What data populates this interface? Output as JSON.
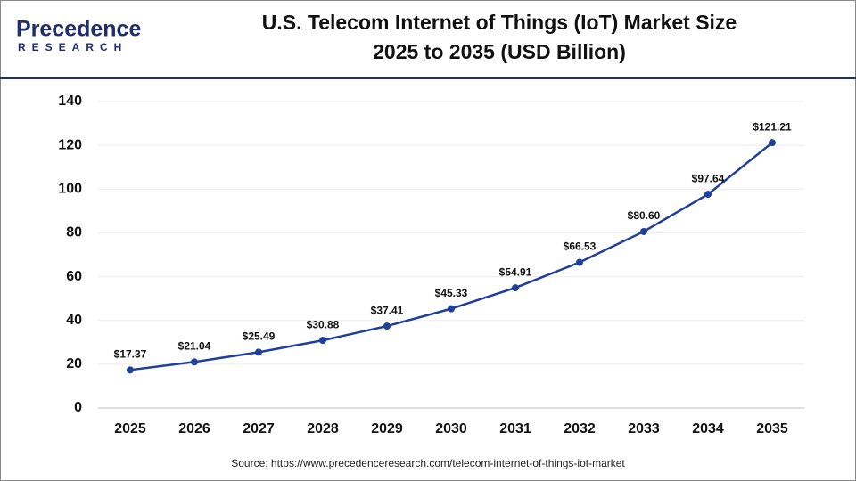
{
  "logo": {
    "name": "Precedence",
    "tagline": "RESEARCH"
  },
  "chart_data": {
    "type": "line",
    "title": "U.S. Telecom Internet of Things (IoT) Market Size",
    "subtitle": "2025 to 2035 (USD Billion)",
    "categories": [
      "2025",
      "2026",
      "2027",
      "2028",
      "2029",
      "2030",
      "2031",
      "2032",
      "2033",
      "2034",
      "2035"
    ],
    "values": [
      17.37,
      21.04,
      25.49,
      30.88,
      37.41,
      45.33,
      54.91,
      66.53,
      80.6,
      97.64,
      121.21
    ],
    "value_labels": [
      "$17.37",
      "$21.04",
      "$25.49",
      "$30.88",
      "$37.41",
      "$45.33",
      "$54.91",
      "$66.53",
      "$80.60",
      "$97.64",
      "$121.21"
    ],
    "color": "#1f3f99",
    "ylim": [
      0,
      140
    ],
    "yticks": [
      0,
      20,
      40,
      60,
      80,
      100,
      120,
      140
    ],
    "grid": true,
    "source": "Source: https://www.precedenceresearch.com/telecom-internet-of-things-iot-market"
  }
}
